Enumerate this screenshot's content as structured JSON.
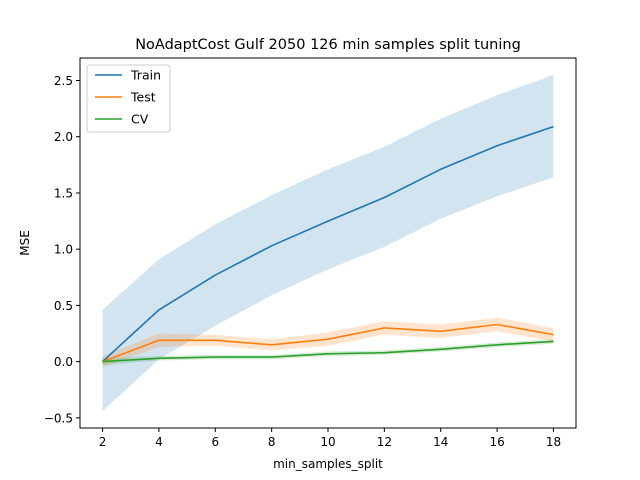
{
  "chart_data": {
    "type": "line",
    "title": "NoAdaptCost Gulf 2050 126 min samples split tuning",
    "xlabel": "min_samples_split",
    "ylabel": "MSE",
    "x": [
      2,
      4,
      6,
      8,
      10,
      12,
      14,
      16,
      18
    ],
    "xlim": [
      1.2,
      18.8
    ],
    "ylim": [
      -0.59,
      2.7
    ],
    "xticks": [
      2,
      4,
      6,
      8,
      10,
      12,
      14,
      16,
      18
    ],
    "yticks": [
      -0.5,
      0.0,
      0.5,
      1.0,
      1.5,
      2.0,
      2.5
    ],
    "ytick_labels": [
      "−0.5",
      "0.0",
      "0.5",
      "1.0",
      "1.5",
      "2.0",
      "2.5"
    ],
    "grid": false,
    "legend_position": "top-left",
    "series": [
      {
        "name": "Train",
        "color": "#1f77b4",
        "values": [
          0.0,
          0.46,
          0.77,
          1.03,
          1.25,
          1.46,
          1.71,
          1.92,
          2.09
        ],
        "lower": [
          -0.44,
          0.02,
          0.32,
          0.59,
          0.82,
          1.02,
          1.27,
          1.47,
          1.64
        ],
        "upper": [
          0.46,
          0.91,
          1.22,
          1.48,
          1.71,
          1.91,
          2.16,
          2.37,
          2.55
        ]
      },
      {
        "name": "Test",
        "color": "#ff7f0e",
        "values": [
          0.0,
          0.19,
          0.19,
          0.15,
          0.2,
          0.3,
          0.27,
          0.33,
          0.24
        ],
        "lower": [
          -0.05,
          0.13,
          0.14,
          0.1,
          0.14,
          0.24,
          0.21,
          0.27,
          0.18
        ],
        "upper": [
          0.05,
          0.25,
          0.24,
          0.2,
          0.26,
          0.36,
          0.33,
          0.39,
          0.3
        ]
      },
      {
        "name": "CV",
        "color": "#2ca02c",
        "values": [
          0.0,
          0.03,
          0.04,
          0.04,
          0.07,
          0.08,
          0.11,
          0.15,
          0.18
        ],
        "lower": [
          -0.03,
          0.01,
          0.02,
          0.02,
          0.05,
          0.06,
          0.09,
          0.13,
          0.16
        ],
        "upper": [
          0.03,
          0.05,
          0.06,
          0.06,
          0.09,
          0.1,
          0.13,
          0.17,
          0.2
        ]
      }
    ]
  }
}
